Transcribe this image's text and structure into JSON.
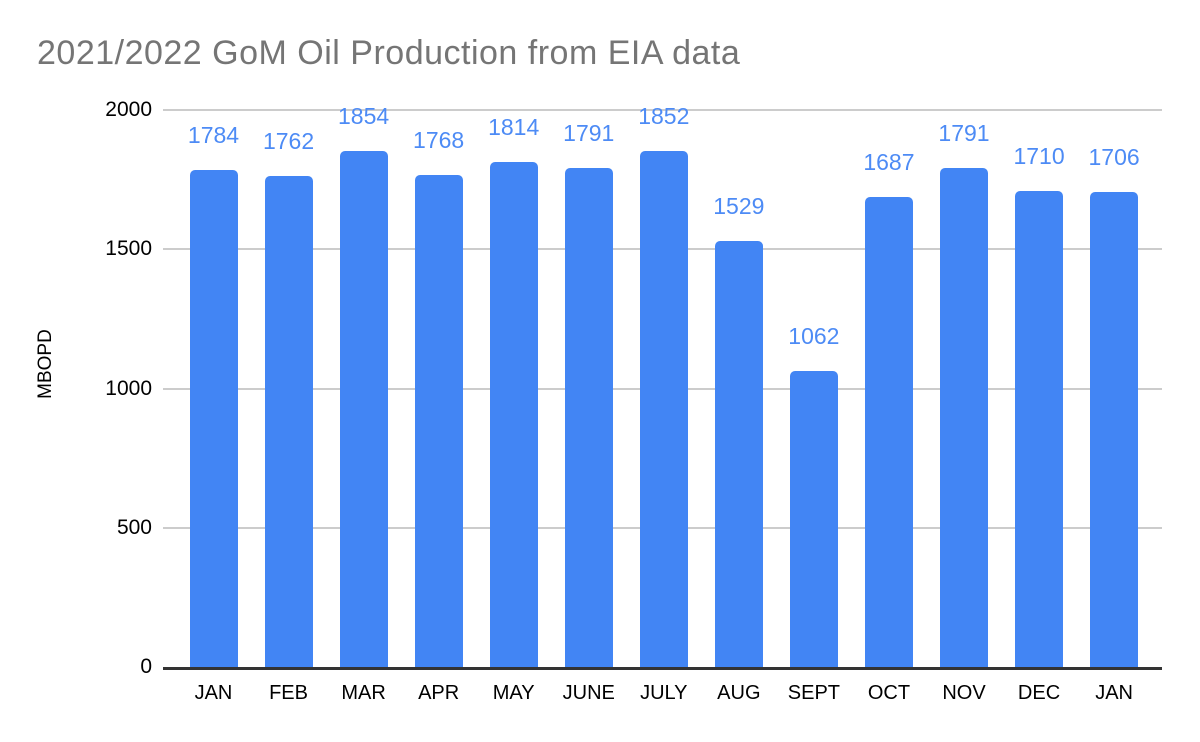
{
  "chart_data": {
    "type": "bar",
    "title": "2021/2022 GoM Oil Production from EIA data",
    "categories": [
      "JAN",
      "FEB",
      "MAR",
      "APR",
      "MAY",
      "JUNE",
      "JULY",
      "AUG",
      "SEPT",
      "OCT",
      "NOV",
      "DEC",
      "JAN"
    ],
    "values": [
      1784,
      1762,
      1854,
      1768,
      1814,
      1791,
      1852,
      1529,
      1062,
      1687,
      1791,
      1710,
      1706
    ],
    "xlabel": "",
    "ylabel": "MBOPD",
    "ylim": [
      0,
      2000
    ],
    "yticks": [
      0,
      500,
      1000,
      1500,
      2000
    ],
    "grid": true,
    "legend": false,
    "data_labels": true,
    "colors": {
      "bar": "#4285F4",
      "data_label": "#4D8BF5",
      "gridline": "#CCCCCC",
      "axis_line": "#333333",
      "title": "#757575",
      "tick_label": "#000000"
    }
  }
}
